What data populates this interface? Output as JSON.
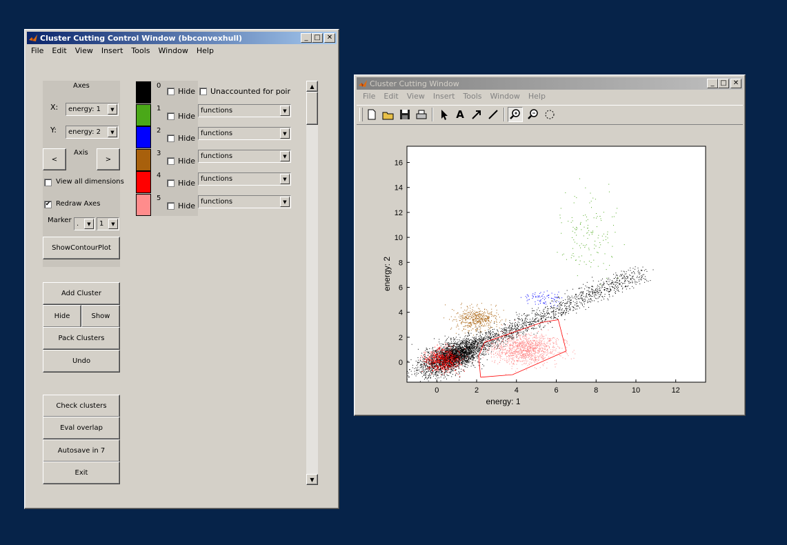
{
  "control_window": {
    "title": "Cluster Cutting Control Window (bbconvexhull)",
    "menu": [
      "File",
      "Edit",
      "View",
      "Insert",
      "Tools",
      "Window",
      "Help"
    ],
    "axes_label": "Axes",
    "x_label": "X:",
    "x_value": "energy: 1",
    "y_label": "Y:",
    "y_value": "energy: 2",
    "axis_label": "Axis",
    "prev_label": "<",
    "next_label": ">",
    "view_all_label": "View all dimensions",
    "view_all_checked": false,
    "redraw_label": "Redraw Axes",
    "redraw_checked": true,
    "redraw_mark": "✔",
    "marker_label": "Marker",
    "marker_value1": ".",
    "marker_value2": "1",
    "show_contour_label": "ShowContourPlot",
    "add_cluster_label": "Add Cluster",
    "hide_label": "Hide",
    "show_label": "Show",
    "pack_label": "Pack Clusters",
    "undo_label": "Undo",
    "check_label": "Check clusters",
    "eval_label": "Eval overlap",
    "autosave_label": "Autosave in 7",
    "exit_label": "Exit",
    "unaccounted_label": "Unaccounted for points c",
    "clusters": [
      {
        "index": "0",
        "color": "#000000",
        "hide": "Hide",
        "func": ""
      },
      {
        "index": "1",
        "color": "#4aa818",
        "hide": "Hide",
        "func": "functions"
      },
      {
        "index": "2",
        "color": "#0000ff",
        "hide": "Hide",
        "func": "functions"
      },
      {
        "index": "3",
        "color": "#a8600c",
        "hide": "Hide",
        "func": "functions"
      },
      {
        "index": "4",
        "color": "#ff0000",
        "hide": "Hide",
        "func": "functions"
      },
      {
        "index": "5",
        "color": "#ff8c8c",
        "hide": "Hide",
        "func": "functions"
      }
    ]
  },
  "plot_window": {
    "title": "Cluster Cutting Window",
    "menu": [
      "File",
      "Edit",
      "View",
      "Insert",
      "Tools",
      "Window",
      "Help"
    ],
    "tools": [
      "new-file",
      "open-folder",
      "save",
      "print",
      "arrow",
      "text-A",
      "arrow-diagonal",
      "line",
      "zoom-in",
      "zoom-out",
      "rotate"
    ]
  },
  "chart_data": {
    "type": "scatter",
    "xlabel": "energy: 1",
    "ylabel": "energy: 2",
    "xlim": [
      -1.5,
      13.5
    ],
    "ylim": [
      -1.6,
      17.3
    ],
    "xticks": [
      0,
      2,
      4,
      6,
      8,
      10,
      12
    ],
    "yticks": [
      0,
      2,
      4,
      6,
      8,
      10,
      12,
      14,
      16
    ],
    "grid": false,
    "series": [
      {
        "color": "#000000",
        "count": 4000,
        "cx": 0.7,
        "cy": 0.4,
        "sx": 0.75,
        "sy": 0.6,
        "spread": "diagonal"
      },
      {
        "color": "#4aa818",
        "count": 140,
        "cx": 7.7,
        "cy": 10.2,
        "sx": 0.7,
        "sy": 1.5,
        "spread": "none"
      },
      {
        "color": "#a8600c",
        "count": 450,
        "cx": 1.9,
        "cy": 3.5,
        "sx": 0.55,
        "sy": 0.45,
        "spread": "none"
      },
      {
        "color": "#ff0000",
        "count": 550,
        "cx": 0.3,
        "cy": 0.2,
        "sx": 0.45,
        "sy": 0.45,
        "spread": "none"
      },
      {
        "color": "#ff8c8c",
        "count": 1200,
        "cx": 4.4,
        "cy": 1.1,
        "sx": 0.85,
        "sy": 0.6,
        "spread": "none"
      },
      {
        "color": "#0000ff",
        "count": 80,
        "cx": 5.3,
        "cy": 5.2,
        "sx": 0.5,
        "sy": 0.3,
        "spread": "none"
      }
    ],
    "boundary": {
      "color": "#ff0000",
      "points": [
        [
          2.2,
          -1.2
        ],
        [
          3.8,
          -1.0
        ],
        [
          6.5,
          0.9
        ],
        [
          6.1,
          3.4
        ],
        [
          5.3,
          3.2
        ],
        [
          2.4,
          1.6
        ],
        [
          2.1,
          0.5
        ],
        [
          2.2,
          -1.2
        ]
      ]
    }
  }
}
